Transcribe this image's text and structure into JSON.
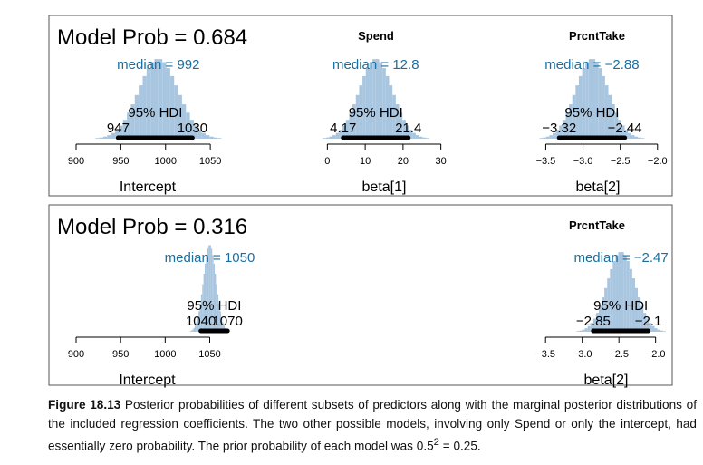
{
  "chart_data": [
    {
      "type": "histogram",
      "panel": "top",
      "model_prob_label": "Model Prob",
      "model_prob": "0.684",
      "subplots": [
        {
          "title": "",
          "xlabel": "Intercept",
          "median_text": "992",
          "hdi_label": "95% HDI",
          "hdi_low_text": "947",
          "hdi_high_text": "1030",
          "median": 992,
          "hdi_low": 947,
          "hdi_high": 1030,
          "xlim": [
            900,
            1060
          ],
          "ticks": [
            900,
            950,
            1000,
            1050
          ],
          "sd": 22,
          "peak_frac": 0.92
        },
        {
          "title": "Spend",
          "xlabel": "beta[1]",
          "median_text": "12.8",
          "hdi_label": "95% HDI",
          "hdi_low_text": "4.17",
          "hdi_high_text": "21.4",
          "median": 12.8,
          "hdi_low": 4.17,
          "hdi_high": 21.4,
          "xlim": [
            -2,
            32
          ],
          "ticks": [
            0,
            10,
            20,
            30
          ],
          "sd": 4.4,
          "peak_frac": 0.92
        },
        {
          "title": "PrcntTake",
          "xlabel": "beta[2]",
          "median_text": "−2.88",
          "hdi_label": "95% HDI",
          "hdi_low_text": "−3.32",
          "hdi_high_text": "−2.44",
          "median": -2.88,
          "hdi_low": -3.32,
          "hdi_high": -2.44,
          "xlim": [
            -3.7,
            -1.9
          ],
          "ticks": [
            -3.5,
            -3.0,
            -2.5,
            -2.0
          ],
          "tick_labels": [
            "−3.5",
            "−3.0",
            "−2.5",
            "−2.0"
          ],
          "sd": 0.22,
          "peak_frac": 0.92
        }
      ]
    },
    {
      "type": "histogram",
      "panel": "bottom",
      "model_prob_label": "Model Prob",
      "model_prob": "0.316",
      "subplots": [
        {
          "title": "",
          "xlabel": "Intercept",
          "median_text": "1050",
          "hdi_label": "95% HDI",
          "hdi_low_text": "1040",
          "hdi_high_text": "1070",
          "median": 1050,
          "hdi_low": 1040,
          "hdi_high": 1070,
          "xlim": [
            900,
            1080
          ],
          "ticks": [
            900,
            950,
            1000,
            1050
          ],
          "sd": 7,
          "peak_frac": 1.0
        },
        null,
        {
          "title": "PrcntTake",
          "xlabel": "beta[2]",
          "median_text": "−2.47",
          "hdi_label": "95% HDI",
          "hdi_low_text": "−2.85",
          "hdi_high_text": "−2.1",
          "median": -2.47,
          "hdi_low": -2.85,
          "hdi_high": -2.1,
          "xlim": [
            -3.7,
            -1.65
          ],
          "ticks": [
            -3.5,
            -3.0,
            -2.5,
            -2.0
          ],
          "tick_labels": [
            "−3.5",
            "−3.0",
            "−2.5",
            "−2.0"
          ],
          "sd": 0.19,
          "peak_frac": 0.92
        }
      ]
    }
  ],
  "caption": {
    "figure_label": "Figure 18.13",
    "text": "Posterior probabilities of different subsets of predictors along with the marginal posterior distributions of the included regression coefficients. The two other possible models, involving only Spend or only the intercept, had essentially zero probability. The prior probability of each model was 0.5",
    "superscript": "2",
    "equation_tail": " = 0.25."
  },
  "colors": {
    "bar": "#a9c6e0",
    "median_text": "#1a6fa0",
    "hdi_bar": "#000000",
    "frame": "#555555"
  }
}
